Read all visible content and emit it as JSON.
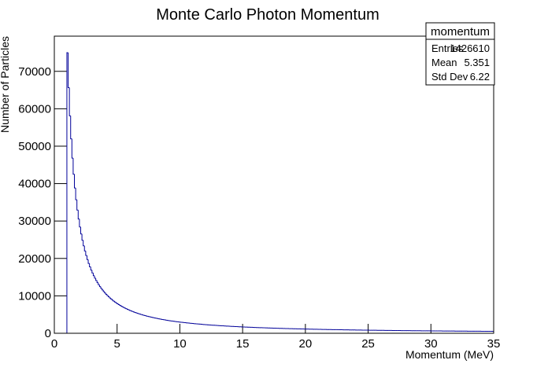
{
  "chart_data": {
    "type": "histogram",
    "title": "Monte Carlo Photon Momentum",
    "x_label": "Momentum (MeV)",
    "y_label": "Number of Particles",
    "color": "#000099",
    "xlim": [
      0,
      35
    ],
    "ylim": [
      0,
      79400
    ],
    "xticks": [
      0,
      5,
      10,
      15,
      20,
      25,
      30,
      35
    ],
    "yticks": [
      0,
      10000,
      20000,
      30000,
      40000,
      50000,
      60000,
      70000
    ],
    "stats": {
      "name": "momentum",
      "entries_label": "Entries",
      "entries": 1426610,
      "mean_label": "Mean",
      "mean": 5.351,
      "std_label": "Std Dev",
      "std": 6.22
    },
    "bins": [
      1,
      1.1,
      1.2,
      1.3,
      1.4,
      1.5,
      1.6,
      1.7,
      1.8,
      1.9,
      2,
      2.1,
      2.2,
      2.3,
      2.4,
      2.5,
      2.6,
      2.7,
      2.8,
      2.9,
      3,
      3.1,
      3.2,
      3.3,
      3.4,
      3.5,
      3.6,
      3.7,
      3.8,
      3.9,
      4,
      4.1,
      4.2,
      4.3,
      4.4,
      4.5,
      4.6,
      4.7,
      4.8,
      4.9,
      5,
      5.1,
      5.2,
      5.3,
      5.4,
      5.5,
      5.6,
      5.7,
      5.8,
      5.9,
      6,
      6.1,
      6.2,
      6.3,
      6.4,
      6.5,
      6.6,
      6.7,
      6.8,
      6.9,
      7,
      7.1,
      7.2,
      7.3,
      7.4,
      7.5,
      7.6,
      7.7,
      7.8,
      7.9,
      8,
      8.1,
      8.2,
      8.3,
      8.4,
      8.5,
      8.6,
      8.7,
      8.8,
      8.9,
      9,
      9.1,
      9.2,
      9.3,
      9.4,
      9.5,
      9.6,
      9.7,
      9.8,
      9.9,
      10,
      10.1,
      10.2,
      10.3,
      10.4,
      10.5,
      10.6,
      10.7,
      10.8,
      10.9,
      11,
      11.1,
      11.2,
      11.3,
      11.4,
      11.5,
      11.6,
      11.7,
      11.8,
      11.9,
      12,
      12.1,
      12.2,
      12.3,
      12.4,
      12.5,
      12.6,
      12.7,
      12.8,
      12.9,
      13,
      13.1,
      13.2,
      13.3,
      13.4,
      13.5,
      13.6,
      13.7,
      13.8,
      13.9,
      14,
      14.1,
      14.2,
      14.3,
      14.4,
      14.5,
      14.6,
      14.7,
      14.8,
      14.9,
      15,
      15.1,
      15.2,
      15.3,
      15.4,
      15.5,
      15.6,
      15.7,
      15.8,
      15.9,
      16,
      16.1,
      16.2,
      16.3,
      16.4,
      16.5,
      16.6,
      16.7,
      16.8,
      16.9,
      17,
      17.1,
      17.2,
      17.3,
      17.4,
      17.5,
      17.6,
      17.7,
      17.8,
      17.9,
      18,
      18.1,
      18.2,
      18.3,
      18.4,
      18.5,
      18.6,
      18.7,
      18.8,
      18.9,
      19,
      19.1,
      19.2,
      19.3,
      19.4,
      19.5,
      19.6,
      19.7,
      19.8,
      19.9,
      20,
      20.1,
      20.2,
      20.3,
      20.4,
      20.5,
      20.6,
      20.7,
      20.8,
      20.9,
      21,
      21.1,
      21.2,
      21.3,
      21.4,
      21.5,
      21.6,
      21.7,
      21.8,
      21.9,
      22,
      22.1,
      22.2,
      22.3,
      22.4,
      22.5,
      22.6,
      22.7,
      22.8,
      22.9,
      23,
      23.1,
      23.2,
      23.3,
      23.4,
      23.5,
      23.6,
      23.7,
      23.8,
      23.9,
      24,
      24.1,
      24.2,
      24.3,
      24.4,
      24.5,
      24.6,
      24.7,
      24.8,
      24.9,
      25,
      25.1,
      25.2,
      25.3,
      25.4,
      25.5,
      25.6,
      25.7,
      25.8,
      25.9,
      26,
      26.1,
      26.2,
      26.3,
      26.4,
      26.5,
      26.6,
      26.7,
      26.8,
      26.9,
      27,
      27.1,
      27.2,
      27.3,
      27.4,
      27.5,
      27.6,
      27.7,
      27.8,
      27.9,
      28,
      28.1,
      28.2,
      28.3,
      28.4,
      28.5,
      28.6,
      28.7,
      28.8,
      28.9,
      29,
      29.1,
      29.2,
      29.3,
      29.4,
      29.5,
      29.6,
      29.7,
      29.8,
      29.9,
      30,
      30.1,
      30.2,
      30.3,
      30.4,
      30.5,
      30.6,
      30.7,
      30.8,
      30.9,
      31,
      31.1,
      31.2,
      31.3,
      31.4,
      31.5,
      31.6,
      31.7,
      31.8,
      31.9,
      32,
      32.1,
      32.2,
      32.3,
      32.4,
      32.5,
      32.6,
      32.7,
      32.8,
      32.9,
      33,
      33.1,
      33.2,
      33.3,
      33.4,
      33.5,
      33.6,
      33.7,
      33.8,
      33.9,
      34,
      34.1,
      34.2,
      34.3,
      34.4,
      34.5,
      34.6,
      34.7,
      34.8,
      34.9,
      35
    ],
    "values": [
      75000,
      65630,
      58100,
      51950,
      46820,
      42510,
      38840,
      35680,
      32930,
      30530,
      28420,
      26540,
      24870,
      23370,
      22010,
      20790,
      19680,
      18670,
      17750,
      16890,
      16110,
      15380,
      14720,
      14100,
      13520,
      12980,
      12480,
      12010,
      11570,
      11160,
      10770,
      10400,
      10060,
      9730,
      9430,
      9130,
      8860,
      8590,
      8340,
      8110,
      7880,
      7660,
      7460,
      7260,
      7070,
      6900,
      6720,
      6560,
      6400,
      6250,
      6100,
      5960,
      5825,
      5695,
      5570,
      5450,
      5335,
      5225,
      5115,
      5010,
      4910,
      4815,
      4720,
      4630,
      4545,
      4460,
      4380,
      4300,
      4225,
      4150,
      4075,
      4005,
      3935,
      3870,
      3805,
      3740,
      3680,
      3620,
      3560,
      3505,
      3450,
      3397,
      3345,
      3295,
      3246,
      3198,
      3151,
      3106,
      3062,
      3019,
      2977,
      2941,
      2904,
      2868,
      2831,
      2795,
      2759,
      2722,
      2686,
      2649,
      2613,
      2583,
      2553,
      2523,
      2493,
      2464,
      2434,
      2404,
      2374,
      2344,
      2314,
      2289,
      2265,
      2240,
      2216,
      2191,
      2166,
      2142,
      2117,
      2093,
      2068,
      2048,
      2027,
      2007,
      1987,
      1967,
      1946,
      1926,
      1906,
      1885,
      1865,
      1848,
      1831,
      1813,
      1796,
      1779,
      1762,
      1745,
      1727,
      1710,
      1693,
      1678,
      1664,
      1649,
      1635,
      1620,
      1605,
      1591,
      1576,
      1562,
      1547,
      1534,
      1522,
      1509,
      1496,
      1484,
      1471,
      1458,
      1445,
      1433,
      1420,
      1409,
      1398,
      1387,
      1376,
      1366,
      1355,
      1344,
      1333,
      1322,
      1311,
      1302,
      1292,
      1283,
      1273,
      1264,
      1254,
      1245,
      1235,
      1226,
      1216,
      1208,
      1199,
      1191,
      1182,
      1174,
      1165,
      1157,
      1148,
      1140,
      1131,
      1124,
      1116,
      1109,
      1101,
      1094,
      1087,
      1079,
      1072,
      1064,
      1057,
      1050,
      1044,
      1037,
      1030,
      1024,
      1017,
      1010,
      1003,
      997,
      990,
      984,
      978,
      972,
      966,
      960,
      954,
      948,
      942,
      936,
      930,
      925,
      919,
      914,
      909,
      904,
      898,
      893,
      888,
      882,
      877,
      872,
      867,
      862,
      857,
      853,
      848,
      843,
      838,
      833,
      828,
      824,
      819,
      815,
      810,
      806,
      802,
      797,
      793,
      788,
      784,
      780,
      776,
      772,
      768,
      764,
      759,
      755,
      751,
      747,
      743,
      739,
      736,
      732,
      729,
      725,
      721,
      718,
      714,
      711,
      707,
      704,
      700,
      697,
      693,
      690,
      687,
      683,
      680,
      676,
      673,
      670,
      667,
      663,
      660,
      657,
      654,
      651,
      647,
      644,
      641,
      638,
      635,
      633,
      630,
      627,
      624,
      621,
      619,
      616,
      613,
      610,
      608,
      605,
      602,
      600,
      597,
      594,
      591,
      589,
      586,
      584,
      581,
      579,
      576,
      574,
      571,
      569,
      566,
      564,
      561,
      559,
      556,
      554,
      552,
      550,
      547,
      545,
      543,
      540,
      538,
      536,
      534,
      532,
      530,
      528,
      525,
      523,
      521,
      519
    ]
  }
}
